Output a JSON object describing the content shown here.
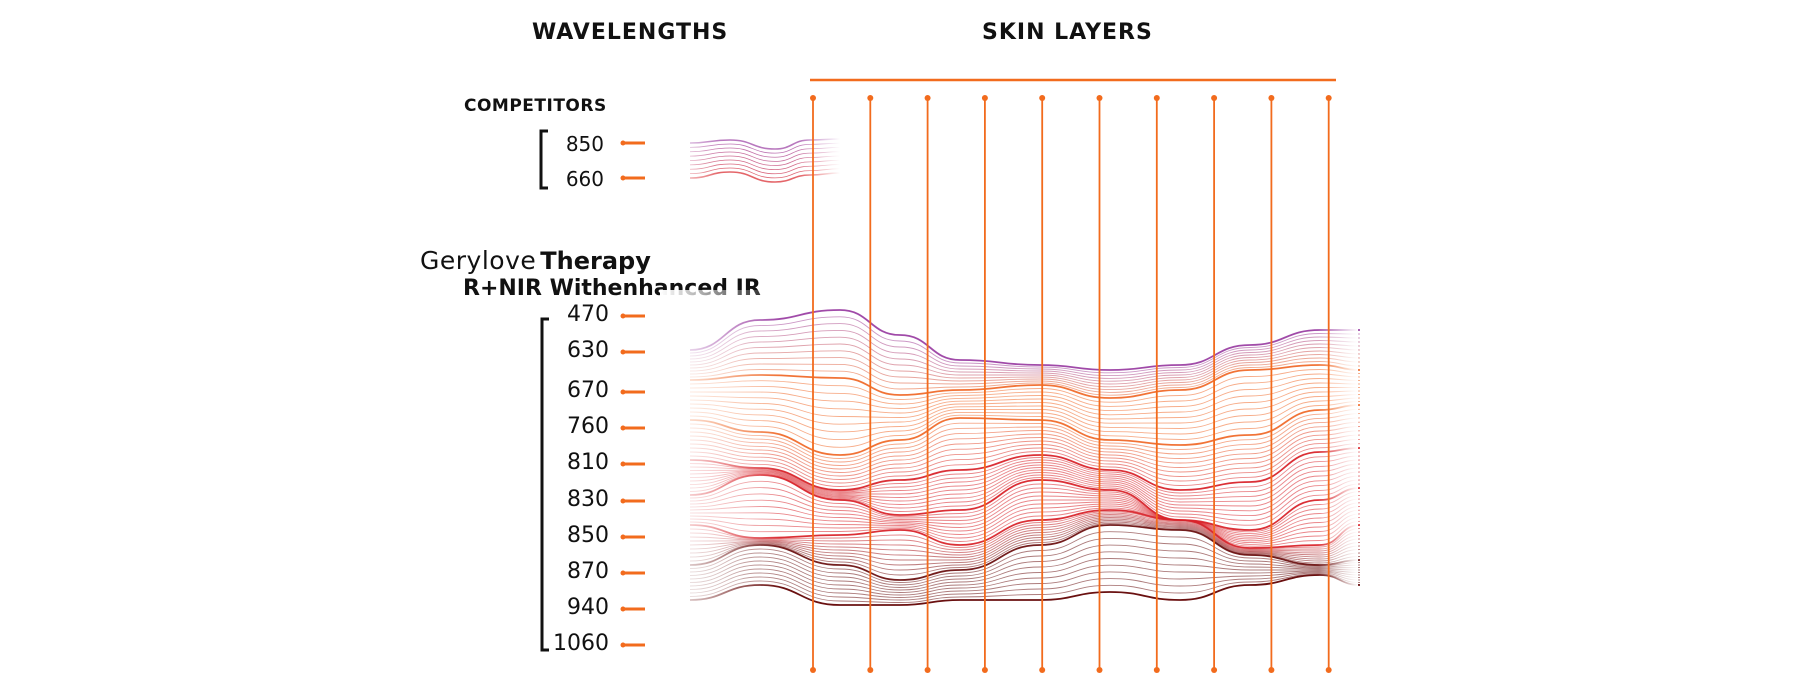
{
  "headers": {
    "wavelengths": "WAVELENGTHS",
    "skin_layers": "SKIN LAYERS"
  },
  "competitors": {
    "title": "COMPETITORS",
    "wavelengths": [
      "850",
      "660"
    ]
  },
  "product": {
    "brand": "Gerylove",
    "brand_suffix": "Therapy",
    "subtitle": "R+NIR Withenhanced IR",
    "wavelengths": [
      "470",
      "630",
      "670",
      "760",
      "810",
      "830",
      "850",
      "870",
      "940",
      "1060"
    ]
  },
  "colors": {
    "accent": "#f26b1d",
    "purple": "#9a3fa3",
    "orange": "#f06a2a",
    "red": "#d8232a",
    "dark_red": "#6a1010",
    "bracket": "#111111"
  },
  "skin_layer_lines": 10
}
